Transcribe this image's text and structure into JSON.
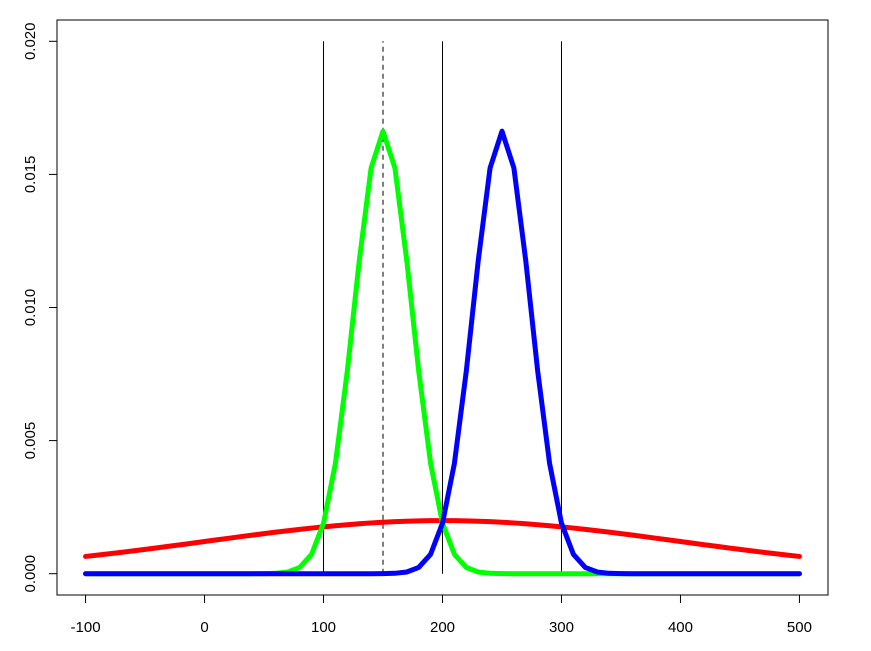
{
  "chart_data": {
    "type": "line",
    "x": [
      -100,
      -90,
      -80,
      -70,
      -60,
      -50,
      -40,
      -30,
      -20,
      -10,
      0,
      10,
      20,
      30,
      40,
      50,
      60,
      70,
      80,
      90,
      100,
      110,
      120,
      130,
      140,
      150,
      160,
      170,
      180,
      190,
      200,
      210,
      220,
      230,
      240,
      250,
      260,
      270,
      280,
      290,
      300,
      310,
      320,
      330,
      340,
      350,
      360,
      370,
      380,
      390,
      400,
      410,
      420,
      430,
      440,
      450,
      460,
      470,
      480,
      490,
      500
    ],
    "series": [
      {
        "color": "#ff0000",
        "values": [
          0.000648,
          0.000697,
          0.000749,
          0.000802,
          0.000857,
          0.000913,
          0.000971,
          0.00103,
          0.001089,
          0.001149,
          0.00121,
          0.00127,
          0.00133,
          0.00139,
          0.001448,
          0.001506,
          0.001561,
          0.001615,
          0.001666,
          0.001715,
          0.00176,
          0.001803,
          0.001841,
          0.001876,
          0.001907,
          0.001933,
          0.001955,
          0.001972,
          0.001985,
          0.001992,
          0.001995,
          0.001992,
          0.001985,
          0.001972,
          0.001955,
          0.001933,
          0.001907,
          0.001876,
          0.001841,
          0.001803,
          0.00176,
          0.001715,
          0.001666,
          0.001615,
          0.001561,
          0.001506,
          0.001448,
          0.00139,
          0.00133,
          0.00127,
          0.00121,
          0.001149,
          0.001089,
          0.00103,
          0.000971,
          0.000913,
          0.000857,
          0.000802,
          0.000749,
          0.000697,
          0.000648
        ]
      },
      {
        "color": "#00ff00",
        "values": [
          0,
          0,
          0,
          0,
          0,
          0,
          0,
          0,
          0,
          0,
          0,
          0,
          0,
          0,
          0,
          3e-06,
          1.5e-05,
          6.4e-05,
          0.000236,
          0.00073,
          0.001898,
          0.004146,
          0.00761,
          0.011748,
          0.015242,
          0.016623,
          0.015242,
          0.011748,
          0.00761,
          0.004146,
          0.001898,
          0.00073,
          0.000236,
          6.4e-05,
          1.5e-05,
          3e-06,
          0,
          0,
          0,
          0,
          0,
          0,
          0,
          0,
          0,
          0,
          0,
          0,
          0,
          0,
          0,
          0,
          0,
          0,
          0,
          0,
          0,
          0,
          0,
          0,
          0
        ]
      },
      {
        "color": "#0000ff",
        "values": [
          0,
          0,
          0,
          0,
          0,
          0,
          0,
          0,
          0,
          0,
          0,
          0,
          0,
          0,
          0,
          0,
          0,
          0,
          0,
          0,
          0,
          0,
          0,
          0,
          0,
          3e-06,
          1.5e-05,
          6.4e-05,
          0.000236,
          0.00073,
          0.001898,
          0.004146,
          0.00761,
          0.011748,
          0.015242,
          0.016623,
          0.015242,
          0.011748,
          0.00761,
          0.004146,
          0.001898,
          0.00073,
          0.000236,
          6.4e-05,
          1.5e-05,
          3e-06,
          0,
          0,
          0,
          0,
          0,
          0,
          0,
          0,
          0,
          0,
          0,
          0,
          0,
          0,
          0
        ]
      }
    ],
    "vlines": [
      {
        "x": 100,
        "dashed": false
      },
      {
        "x": 150,
        "dashed": true
      },
      {
        "x": 200,
        "dashed": false
      },
      {
        "x": 300,
        "dashed": false
      }
    ],
    "xlim": [
      -124,
      524
    ],
    "ylim": [
      -0.0008,
      0.0208
    ],
    "xticks": [
      -100,
      0,
      100,
      200,
      300,
      400,
      500
    ],
    "yticks": [
      {
        "value": 0,
        "label": "0.000"
      },
      {
        "value": 0.005,
        "label": "0.005"
      },
      {
        "value": 0.01,
        "label": "0.010"
      },
      {
        "value": 0.015,
        "label": "0.015"
      },
      {
        "value": 0.02,
        "label": "0.020"
      }
    ]
  }
}
